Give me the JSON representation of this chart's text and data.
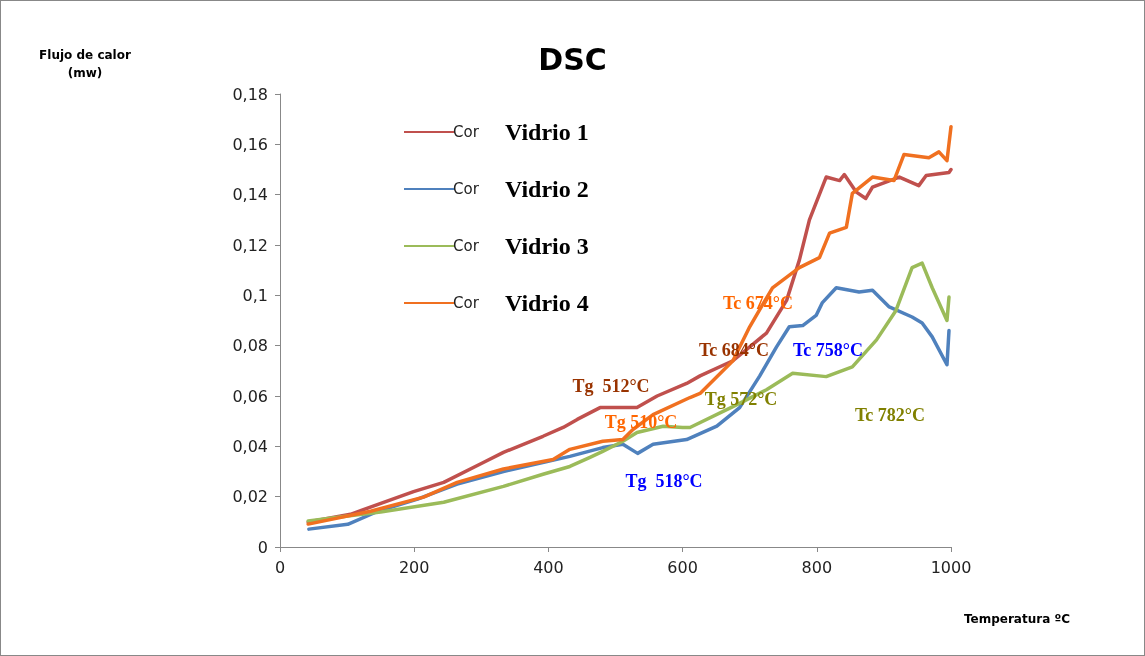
{
  "chart_data": {
    "type": "line",
    "title": "DSC",
    "xlabel": "Temperatura ºC",
    "xlim": [
      0,
      1000
    ],
    "xticks": [
      0,
      200,
      400,
      600,
      800,
      1000
    ],
    "ylim": [
      0,
      0.18
    ],
    "yticks": [
      0,
      {
        "value": 0.02,
        "label": "0,02"
      },
      {
        "value": 0.04,
        "label": "0,04"
      },
      {
        "value": 0.06,
        "label": "0,06"
      },
      {
        "value": 0.08,
        "label": "0,08"
      },
      {
        "value": 0.1,
        "label": "0,1"
      },
      {
        "value": 0.12,
        "label": "0,12"
      },
      {
        "value": 0.14,
        "label": "0,14"
      },
      {
        "value": 0.16,
        "label": "0,16"
      },
      {
        "value": 0.18,
        "label": "0,18"
      }
    ],
    "grid": false,
    "legend": "top left",
    "marker": "none",
    "line_style": "solid",
    "series": [
      {
        "name": "Vidrio 1",
        "color": "#c0504d",
        "x": [
          42,
          105,
          199,
          244,
          303,
          333,
          392,
          422,
          443,
          477,
          532,
          562,
          606,
          626,
          675,
          725,
          755,
          774,
          789,
          814,
          834,
          841,
          859,
          873,
          883,
          923,
          952,
          963,
          997,
          1000
        ],
        "values": [
          0.0099,
          0.013,
          0.022,
          0.0257,
          0.0336,
          0.0376,
          0.044,
          0.0475,
          0.0507,
          0.0554,
          0.0554,
          0.06,
          0.065,
          0.068,
          0.074,
          0.085,
          0.098,
          0.114,
          0.13,
          0.147,
          0.1456,
          0.148,
          0.141,
          0.1385,
          0.143,
          0.147,
          0.1436,
          0.1476,
          0.1488,
          0.15
        ]
      },
      {
        "name": "Vidrio 2",
        "color": "#4f81bd",
        "x": [
          43,
          101,
          146,
          205,
          264,
          333,
          398,
          432,
          481,
          511,
          533,
          556,
          606,
          651,
          685,
          715,
          740,
          759,
          779,
          799,
          808,
          829,
          863,
          883,
          908,
          942,
          957,
          972,
          994,
          997
        ],
        "values": [
          0.0071,
          0.009,
          0.0142,
          0.019,
          0.025,
          0.03,
          0.034,
          0.036,
          0.0395,
          0.0408,
          0.0372,
          0.0408,
          0.0427,
          0.048,
          0.0554,
          0.068,
          0.0795,
          0.0875,
          0.088,
          0.092,
          0.097,
          0.103,
          0.1013,
          0.102,
          0.0954,
          0.0914,
          0.089,
          0.0835,
          0.0724,
          0.086
        ]
      },
      {
        "name": "Vidrio 3",
        "color": "#9bbb59",
        "x": [
          42,
          101,
          150,
          244,
          333,
          392,
          432,
          462,
          481,
          511,
          532,
          571,
          600,
          611,
          675,
          725,
          764,
          814,
          853,
          889,
          918,
          942,
          957,
          972,
          994,
          997
        ],
        "values": [
          0.0103,
          0.0123,
          0.0139,
          0.0178,
          0.0241,
          0.0289,
          0.032,
          0.0356,
          0.038,
          0.042,
          0.0455,
          0.048,
          0.0475,
          0.0475,
          0.0558,
          0.0625,
          0.069,
          0.0677,
          0.0716,
          0.0823,
          0.094,
          0.111,
          0.1128,
          0.103,
          0.09,
          0.0993
        ]
      },
      {
        "name": "Vidrio 4",
        "color": "#f07020",
        "x": [
          42,
          135,
          214,
          264,
          333,
          407,
          432,
          481,
          511,
          526,
          556,
          611,
          626,
          675,
          700,
          734,
          774,
          804,
          819,
          844,
          853,
          883,
          915,
          930,
          967,
          982,
          994,
          1000
        ],
        "values": [
          0.0091,
          0.0142,
          0.0198,
          0.0257,
          0.031,
          0.0348,
          0.0388,
          0.042,
          0.0427,
          0.0467,
          0.0526,
          0.0594,
          0.061,
          0.074,
          0.0875,
          0.103,
          0.111,
          0.115,
          0.1247,
          0.127,
          0.1405,
          0.147,
          0.1456,
          0.156,
          0.1547,
          0.157,
          0.1535,
          0.167
        ]
      }
    ],
    "annotations": [
      "Cor",
      "Cor",
      "Cor",
      "Cor",
      "Flujo de calor\n(mw)",
      "Tg  512°C",
      "Tc 684°C",
      "Tg  518°C",
      "Tc 758°C",
      "Tg 572°C",
      "Tc 782°C",
      "Tg 510°C",
      "Tc 674°C"
    ]
  }
}
